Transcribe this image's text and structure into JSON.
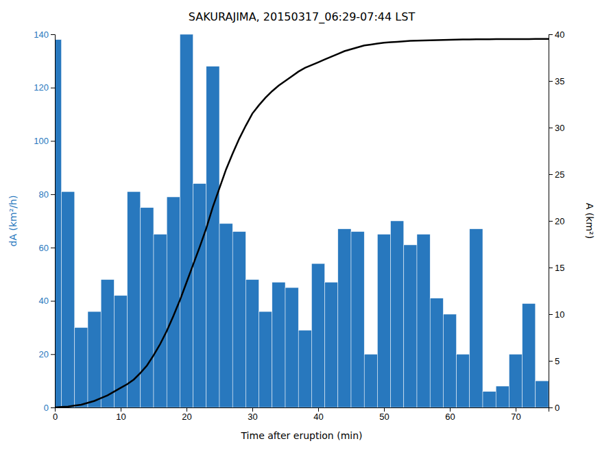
{
  "chart_data": {
    "type": "bar",
    "title": "SAKURAJIMA, 20150317_06:29-07:44 LST",
    "xlabel": "Time after eruption (min)",
    "ylabel": "dA (km²/h)",
    "y2label": "A (km²)",
    "grid": false,
    "xlim": [
      0,
      75
    ],
    "xticks": [
      0,
      10,
      20,
      30,
      40,
      50,
      60,
      70
    ],
    "ylim": [
      0,
      140
    ],
    "yticks": [
      0,
      20,
      40,
      60,
      80,
      100,
      120,
      140
    ],
    "y2lim": [
      0,
      40
    ],
    "y2ticks": [
      0,
      5,
      10,
      15,
      20,
      25,
      30,
      35,
      40
    ],
    "series": [
      {
        "type": "bar",
        "color": "#2878BE",
        "x": [
          0,
          2,
          4,
          6,
          8,
          10,
          12,
          14,
          16,
          18,
          20,
          22,
          24,
          26,
          28,
          30,
          32,
          34,
          36,
          38,
          40,
          42,
          44,
          46,
          48,
          50,
          52,
          54,
          56,
          58,
          60,
          62,
          64,
          66,
          68,
          70,
          72,
          74
        ],
        "values": [
          138,
          81,
          30,
          36,
          48,
          42,
          81,
          75,
          65,
          79,
          140,
          84,
          128,
          69,
          66,
          48,
          36,
          47,
          45,
          29,
          54,
          47,
          67,
          66,
          20,
          65,
          70,
          61,
          65,
          41,
          35,
          20,
          67,
          6,
          8,
          20,
          39,
          10
        ]
      },
      {
        "type": "line",
        "color": "black",
        "axis": "y2",
        "x": [
          0,
          1,
          2,
          3,
          4,
          5,
          6,
          7,
          8,
          9,
          10,
          11,
          12,
          13,
          14,
          15,
          16,
          17,
          18,
          19,
          20,
          21,
          22,
          23,
          24,
          25,
          26,
          27,
          28,
          29,
          30,
          31,
          32,
          33,
          34,
          35,
          36,
          37,
          38,
          39,
          40,
          41,
          42,
          43,
          44,
          45,
          46,
          47,
          48,
          49,
          50,
          51,
          52,
          53,
          54,
          55,
          56,
          57,
          58,
          59,
          60,
          61,
          62,
          63,
          64,
          65,
          66,
          67,
          68,
          69,
          70,
          71,
          72,
          73,
          74,
          75
        ],
        "values": [
          0.0,
          0.05,
          0.1,
          0.2,
          0.3,
          0.5,
          0.7,
          1.0,
          1.3,
          1.7,
          2.1,
          2.5,
          3.0,
          3.7,
          4.5,
          5.6,
          6.8,
          8.2,
          9.8,
          11.5,
          13.4,
          15.3,
          17.2,
          19.2,
          21.5,
          23.5,
          25.5,
          27.2,
          28.8,
          30.2,
          31.5,
          32.4,
          33.2,
          33.9,
          34.5,
          35.0,
          35.5,
          36.0,
          36.4,
          36.7,
          37.0,
          37.3,
          37.6,
          37.9,
          38.2,
          38.4,
          38.6,
          38.8,
          38.9,
          39.0,
          39.1,
          39.15,
          39.2,
          39.25,
          39.3,
          39.32,
          39.34,
          39.36,
          39.38,
          39.4,
          39.42,
          39.43,
          39.44,
          39.45,
          39.46,
          39.47,
          39.47,
          39.48,
          39.48,
          39.48,
          39.49,
          39.49,
          39.49,
          39.5,
          39.5,
          39.5
        ]
      }
    ]
  }
}
